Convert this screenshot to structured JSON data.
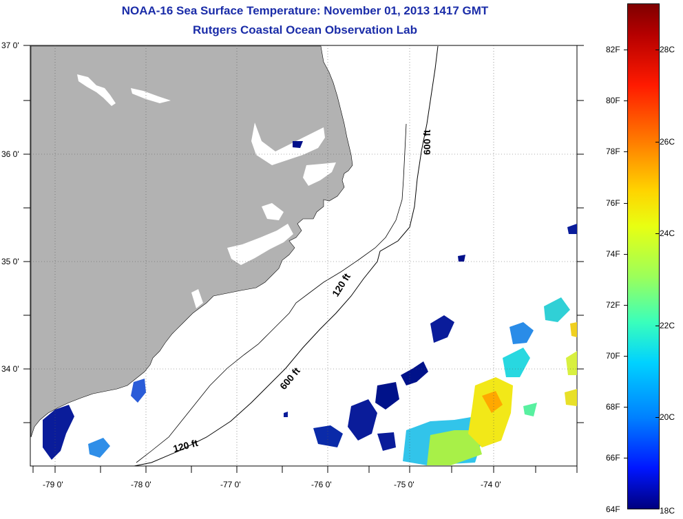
{
  "title": {
    "line1": "NOAA-16 Sea Surface Temperature:  November 01, 2013 1417 GMT",
    "line2": "Rutgers Coastal Ocean Observation Lab"
  },
  "colors": {
    "title": "#1a2ca8",
    "land": "#b2b2b2",
    "ocean": "#ffffff",
    "cold": "#00007f",
    "warm": "#ffd400"
  },
  "map": {
    "lat_labels": [
      "37 0'",
      "36 0'",
      "35 0'",
      "34 0'"
    ],
    "lon_labels": [
      "-79 0'",
      "-78 0'",
      "-77 0'",
      "-76 0'",
      "-75 0'",
      "-74 0'"
    ],
    "isobaths": [
      "600 ft",
      "120 ft",
      "600 ft",
      "120 ft"
    ]
  },
  "colorbar": {
    "fahrenheit": [
      "82F",
      "80F",
      "78F",
      "76F",
      "74F",
      "72F",
      "70F",
      "68F",
      "66F",
      "64F"
    ],
    "celsius": [
      "28C",
      "26C",
      "24C",
      "22C",
      "20C",
      "18C"
    ]
  }
}
